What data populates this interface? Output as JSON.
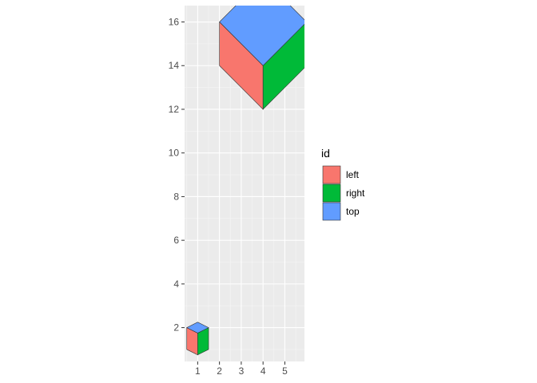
{
  "chart_data": {
    "type": "polygon",
    "title": "",
    "xlabel": "",
    "ylabel": "",
    "xlim": [
      0.4,
      5.9
    ],
    "ylim": [
      0.45,
      16.75
    ],
    "x_ticks": [
      "1",
      "2",
      "3",
      "4",
      "5"
    ],
    "x_tick_values": [
      1,
      2,
      3,
      4,
      5
    ],
    "y_ticks": [
      "2",
      "4",
      "6",
      "8",
      "10",
      "12",
      "14",
      "16"
    ],
    "y_tick_values": [
      2,
      4,
      6,
      8,
      10,
      12,
      14,
      16
    ],
    "grid": true,
    "legend": {
      "title": "id",
      "position": "right",
      "entries": [
        {
          "id": "left",
          "label": "left",
          "color": "#F8766D"
        },
        {
          "id": "right",
          "label": "right",
          "color": "#00BA38"
        },
        {
          "id": "top",
          "label": "top",
          "color": "#619CFF"
        }
      ]
    },
    "polygons": [
      {
        "id": "left",
        "points": [
          [
            0.5,
            1.0
          ],
          [
            1.0,
            0.75
          ],
          [
            1.0,
            1.75
          ],
          [
            0.5,
            2.0
          ]
        ]
      },
      {
        "id": "left",
        "points": [
          [
            2.0,
            14.0
          ],
          [
            4.0,
            12.0
          ],
          [
            4.0,
            14.0
          ],
          [
            2.0,
            16.0
          ]
        ]
      },
      {
        "id": "right",
        "points": [
          [
            1.0,
            0.75
          ],
          [
            1.5,
            1.0
          ],
          [
            1.5,
            2.0
          ],
          [
            1.0,
            1.75
          ]
        ]
      },
      {
        "id": "right",
        "points": [
          [
            4.0,
            12.0
          ],
          [
            6.0,
            14.0
          ],
          [
            6.0,
            16.0
          ],
          [
            4.0,
            14.0
          ]
        ]
      },
      {
        "id": "top",
        "points": [
          [
            0.5,
            2.0
          ],
          [
            1.0,
            1.75
          ],
          [
            1.5,
            2.0
          ],
          [
            1.0,
            2.25
          ]
        ]
      },
      {
        "id": "top",
        "points": [
          [
            2.0,
            16.0
          ],
          [
            4.0,
            14.0
          ],
          [
            6.0,
            16.0
          ],
          [
            4.0,
            18.0
          ]
        ]
      }
    ]
  }
}
